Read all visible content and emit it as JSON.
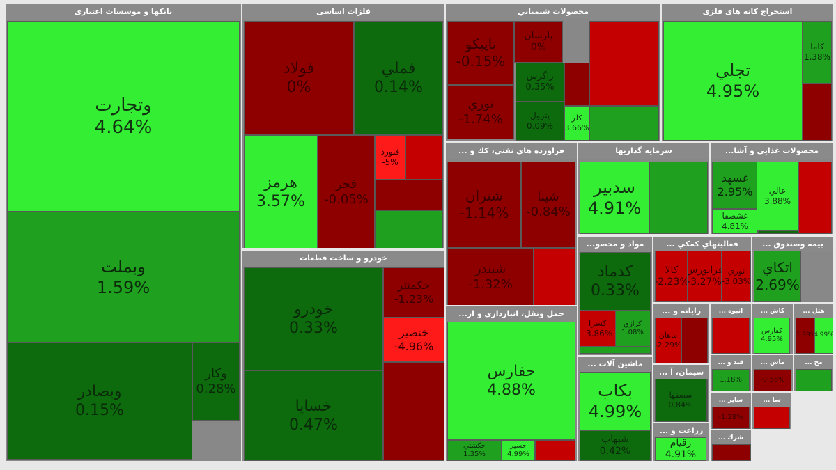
{
  "palette": {
    "up_bright": "#33ee33",
    "up_mid": "#1fa01f",
    "up_dark": "#0d6a0d",
    "down_dark": "#8e0000",
    "down_mid": "#c40000",
    "down_bright": "#ff1a1a",
    "neutral": "#c8c8c8"
  },
  "chart_data": {
    "type": "treemap",
    "sectors": [
      {
        "name": "بانکها و موسسات اعتباری",
        "tiles": [
          {
            "symbol": "وتجارت",
            "change": "4.64%",
            "value": 4.64
          },
          {
            "symbol": "وبملت",
            "change": "1.59%",
            "value": 1.59
          },
          {
            "symbol": "وبصادر",
            "change": "0.15%",
            "value": 0.15
          },
          {
            "symbol": "وکار",
            "change": "0.28%",
            "value": 0.28
          }
        ]
      },
      {
        "name": "فلزات اساسی",
        "tiles": [
          {
            "symbol": "فولاد",
            "change": "0%",
            "value": 0
          },
          {
            "symbol": "فملي",
            "change": "0.14%",
            "value": 0.14
          },
          {
            "symbol": "هرمز",
            "change": "3.57%",
            "value": 3.57
          },
          {
            "symbol": "فجر",
            "change": "-0.05%",
            "value": -0.05
          },
          {
            "symbol": "فنورد",
            "change": "-5%",
            "value": -5
          }
        ]
      },
      {
        "name": "محصولات شيميايي",
        "tiles": [
          {
            "symbol": "تاپيكو",
            "change": "-0.15%",
            "value": -0.15
          },
          {
            "symbol": "پارسان",
            "change": "0%",
            "value": 0
          },
          {
            "symbol": "نوري",
            "change": "-1.74%",
            "value": -1.74
          },
          {
            "symbol": "زاگرس",
            "change": "0.35%",
            "value": 0.35
          },
          {
            "symbol": "پترول",
            "change": "0.09%",
            "value": 0.09
          },
          {
            "symbol": "كلر",
            "change": "3.66%",
            "value": 3.66
          }
        ]
      },
      {
        "name": "استخراج کانه های فلزی",
        "tiles": [
          {
            "symbol": "تجلي",
            "change": "4.95%",
            "value": 4.95
          },
          {
            "symbol": "کاما",
            "change": "1.38%",
            "value": 1.38
          }
        ]
      },
      {
        "name": "فراورده هاي نفتي، كك و ...",
        "tiles": [
          {
            "symbol": "شتران",
            "change": "-1.14%",
            "value": -1.14
          },
          {
            "symbol": "شپنا",
            "change": "-0.84%",
            "value": -0.84
          },
          {
            "symbol": "شبندر",
            "change": "-1.32%",
            "value": -1.32
          }
        ]
      },
      {
        "name": "سرمايه گذاريها",
        "tiles": [
          {
            "symbol": "سدبير",
            "change": "4.91%",
            "value": 4.91
          }
        ]
      },
      {
        "name": "محصولات غذايي و آشا...",
        "tiles": [
          {
            "symbol": "غسهد",
            "change": "2.95%",
            "value": 2.95
          },
          {
            "symbol": "غشصفا",
            "change": "4.81%",
            "value": 4.81
          },
          {
            "symbol": "عالي",
            "change": "3.88%",
            "value": 3.88
          }
        ]
      },
      {
        "name": "خودرو و ساخت قطعات",
        "tiles": [
          {
            "symbol": "خودرو",
            "change": "0.33%",
            "value": 0.33
          },
          {
            "symbol": "خساپا",
            "change": "0.47%",
            "value": 0.47
          },
          {
            "symbol": "خكمنتر",
            "change": "-1.23%",
            "value": -1.23
          },
          {
            "symbol": "خنصير",
            "change": "-4.96%",
            "value": -4.96
          }
        ]
      },
      {
        "name": "حمل ونقل، انبارداري و ار...",
        "tiles": [
          {
            "symbol": "حفارس",
            "change": "4.88%",
            "value": 4.88
          },
          {
            "symbol": "حكشتي",
            "change": "1.35%",
            "value": 1.35
          },
          {
            "symbol": "حسير",
            "change": "4.99%",
            "value": 4.99
          }
        ]
      },
      {
        "name": "مواد و محصو...",
        "tiles": [
          {
            "symbol": "كدماد",
            "change": "0.33%",
            "value": 0.33
          },
          {
            "symbol": "كرازي",
            "change": "1.08%",
            "value": 1.08
          },
          {
            "symbol": "كسرا",
            "change": "-3.86%",
            "value": -3.86
          }
        ]
      },
      {
        "name": "فعاليتهاي كمكي ...",
        "tiles": [
          {
            "symbol": "كالا",
            "change": "-2.23%",
            "value": -2.23
          },
          {
            "symbol": "فرابورس",
            "change": "-3.27%",
            "value": -3.27
          },
          {
            "symbol": "نوري",
            "change": "-3.03%",
            "value": -3.03
          }
        ]
      },
      {
        "name": "بيمه وصندوق ...",
        "tiles": [
          {
            "symbol": "اتكاي",
            "change": "2.69%",
            "value": 2.69
          }
        ]
      },
      {
        "name": "ماشين آلات ...",
        "tiles": [
          {
            "symbol": "بكاب",
            "change": "4.99%",
            "value": 4.99
          },
          {
            "symbol": "شبهاب",
            "change": "0.42%",
            "value": 0.42
          }
        ]
      },
      {
        "name": "رايانه و ...",
        "tiles": [
          {
            "symbol": "ماهان",
            "change": "-2.29%",
            "value": -2.29
          }
        ]
      },
      {
        "name": "انبوه ...",
        "tiles": []
      },
      {
        "name": "كاش ...",
        "tiles": [
          {
            "symbol": "كفارس",
            "change": "4.95%",
            "value": 4.95
          }
        ]
      },
      {
        "name": "هتل ...",
        "tiles": [
          {
            "symbol": "",
            "change": "-1.99%",
            "value": -1.99
          },
          {
            "symbol": "",
            "change": "4.99%",
            "value": 4.99
          }
        ]
      },
      {
        "name": "سيمان، آ ...",
        "tiles": [
          {
            "symbol": "سصفها",
            "change": "0.84%",
            "value": 0.84
          }
        ]
      },
      {
        "name": "قند و ...",
        "tiles": [
          {
            "symbol": "",
            "change": "1.18%",
            "value": 1.18
          }
        ]
      },
      {
        "name": "ماش ...",
        "tiles": [
          {
            "symbol": "",
            "change": "-0.56%",
            "value": -0.56
          }
        ]
      },
      {
        "name": "مح ...",
        "tiles": []
      },
      {
        "name": "ساير ...",
        "tiles": [
          {
            "symbol": "",
            "change": "-1.28%",
            "value": -1.28
          }
        ]
      },
      {
        "name": "زراعت و ...",
        "tiles": [
          {
            "symbol": "زقيام",
            "change": "4.91%",
            "value": 4.91
          }
        ]
      },
      {
        "name": "شرك ...",
        "tiles": []
      },
      {
        "name": "سا ...",
        "tiles": []
      }
    ]
  }
}
